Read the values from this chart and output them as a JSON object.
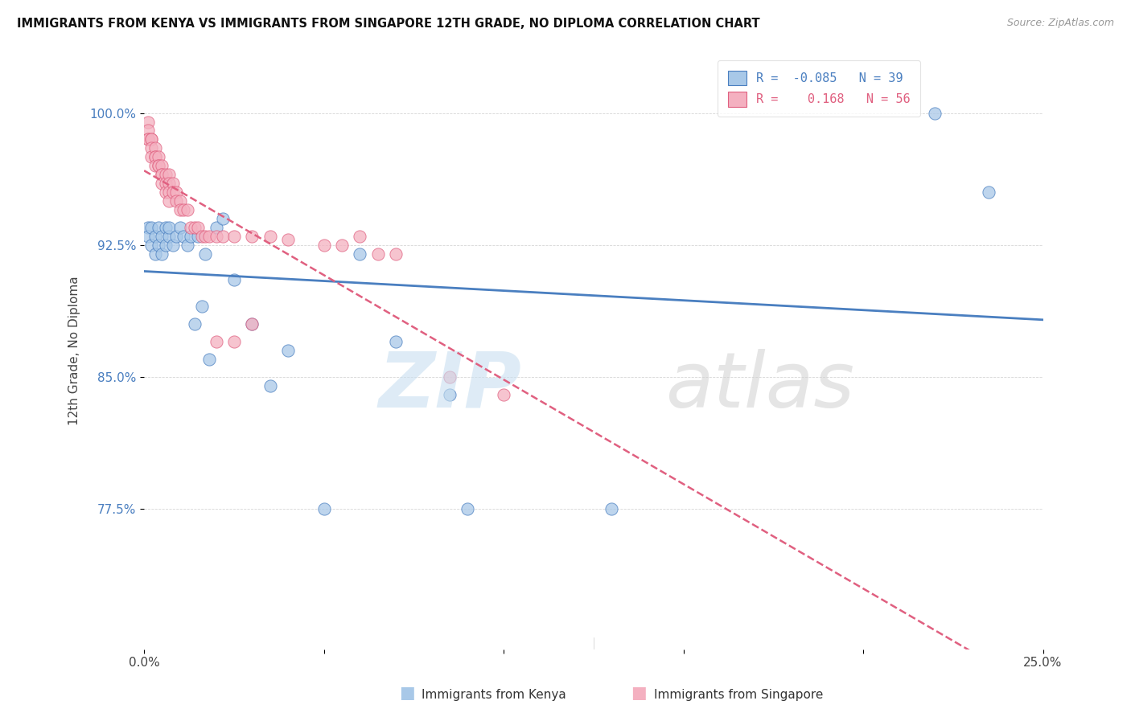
{
  "title": "IMMIGRANTS FROM KENYA VS IMMIGRANTS FROM SINGAPORE 12TH GRADE, NO DIPLOMA CORRELATION CHART",
  "source": "Source: ZipAtlas.com",
  "ylabel": "12th Grade, No Diploma",
  "ytick_labels": [
    "77.5%",
    "85.0%",
    "92.5%",
    "100.0%"
  ],
  "ytick_values": [
    0.775,
    0.85,
    0.925,
    1.0
  ],
  "xlim": [
    0.0,
    0.25
  ],
  "ylim": [
    0.695,
    1.035
  ],
  "legend_r_kenya": "-0.085",
  "legend_n_kenya": "39",
  "legend_r_singapore": "0.168",
  "legend_n_singapore": "56",
  "color_kenya": "#a8c8e8",
  "color_singapore": "#f4b0c0",
  "trendline_kenya_color": "#4a7fc0",
  "trendline_singapore_color": "#e06080",
  "kenya_x": [
    0.001,
    0.001,
    0.002,
    0.002,
    0.003,
    0.003,
    0.004,
    0.004,
    0.005,
    0.005,
    0.006,
    0.006,
    0.007,
    0.007,
    0.008,
    0.009,
    0.01,
    0.011,
    0.012,
    0.013,
    0.014,
    0.015,
    0.016,
    0.017,
    0.018,
    0.02,
    0.022,
    0.025,
    0.03,
    0.035,
    0.04,
    0.05,
    0.06,
    0.07,
    0.085,
    0.09,
    0.13,
    0.22,
    0.235
  ],
  "kenya_y": [
    0.935,
    0.93,
    0.935,
    0.925,
    0.93,
    0.92,
    0.935,
    0.925,
    0.93,
    0.92,
    0.935,
    0.925,
    0.93,
    0.935,
    0.925,
    0.93,
    0.935,
    0.93,
    0.925,
    0.93,
    0.88,
    0.93,
    0.89,
    0.92,
    0.86,
    0.935,
    0.94,
    0.905,
    0.88,
    0.845,
    0.865,
    0.775,
    0.92,
    0.87,
    0.84,
    0.775,
    0.775,
    1.0,
    0.955
  ],
  "singapore_x": [
    0.001,
    0.001,
    0.001,
    0.001,
    0.002,
    0.002,
    0.002,
    0.002,
    0.003,
    0.003,
    0.003,
    0.003,
    0.004,
    0.004,
    0.004,
    0.005,
    0.005,
    0.005,
    0.005,
    0.006,
    0.006,
    0.006,
    0.007,
    0.007,
    0.007,
    0.007,
    0.008,
    0.008,
    0.009,
    0.009,
    0.01,
    0.01,
    0.011,
    0.012,
    0.013,
    0.014,
    0.015,
    0.016,
    0.017,
    0.018,
    0.02,
    0.022,
    0.025,
    0.03,
    0.035,
    0.04,
    0.05,
    0.055,
    0.06,
    0.065,
    0.07,
    0.02,
    0.025,
    0.03,
    0.085,
    0.1
  ],
  "singapore_y": [
    0.995,
    0.99,
    0.985,
    0.985,
    0.985,
    0.985,
    0.98,
    0.975,
    0.98,
    0.975,
    0.975,
    0.97,
    0.975,
    0.97,
    0.97,
    0.97,
    0.965,
    0.965,
    0.96,
    0.965,
    0.96,
    0.955,
    0.965,
    0.96,
    0.955,
    0.95,
    0.96,
    0.955,
    0.955,
    0.95,
    0.95,
    0.945,
    0.945,
    0.945,
    0.935,
    0.935,
    0.935,
    0.93,
    0.93,
    0.93,
    0.93,
    0.93,
    0.93,
    0.93,
    0.93,
    0.928,
    0.925,
    0.925,
    0.93,
    0.92,
    0.92,
    0.87,
    0.87,
    0.88,
    0.85,
    0.84
  ]
}
